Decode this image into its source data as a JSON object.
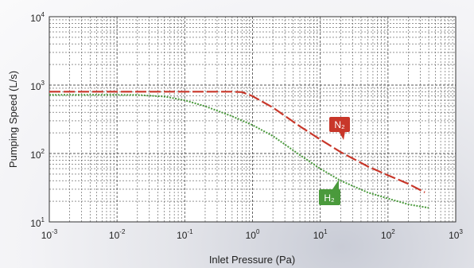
{
  "chart_data": {
    "type": "line",
    "title": "",
    "xlabel": "Inlet Pressure (Pa)",
    "ylabel": "Pumping Speed (L/s)",
    "xscale": "log",
    "yscale": "log",
    "xlim": [
      0.001,
      1000
    ],
    "ylim": [
      10,
      10000
    ],
    "grid": true,
    "x_ticks": [
      {
        "base": "10",
        "exp": "-3"
      },
      {
        "base": "10",
        "exp": "-2"
      },
      {
        "base": "10",
        "exp": "-1"
      },
      {
        "base": "10",
        "exp": "0"
      },
      {
        "base": "10",
        "exp": "1"
      },
      {
        "base": "10",
        "exp": "2"
      },
      {
        "base": "10",
        "exp": "3"
      }
    ],
    "y_ticks": [
      {
        "base": "10",
        "exp": "1"
      },
      {
        "base": "10",
        "exp": "2"
      },
      {
        "base": "10",
        "exp": "3"
      },
      {
        "base": "10",
        "exp": "4"
      }
    ],
    "series": [
      {
        "name": "N₂",
        "color": "#c8372a",
        "style": "dashed",
        "x": [
          0.001,
          0.01,
          0.1,
          0.5,
          0.7,
          1,
          2,
          5,
          10,
          20,
          50,
          100,
          200,
          350
        ],
        "y": [
          800,
          800,
          800,
          800,
          790,
          690,
          470,
          250,
          160,
          105,
          65,
          48,
          36,
          27
        ]
      },
      {
        "name": "H₂",
        "color": "#4a9a3c",
        "style": "dotted",
        "x": [
          0.001,
          0.01,
          0.02,
          0.05,
          0.1,
          0.2,
          0.5,
          1,
          2,
          5,
          10,
          20,
          50,
          100,
          200,
          400
        ],
        "y": [
          720,
          720,
          718,
          680,
          600,
          490,
          350,
          260,
          180,
          95,
          60,
          40,
          27,
          22,
          18,
          16
        ]
      }
    ]
  },
  "labels": {
    "n2": "N₂",
    "h2": "H₂"
  }
}
